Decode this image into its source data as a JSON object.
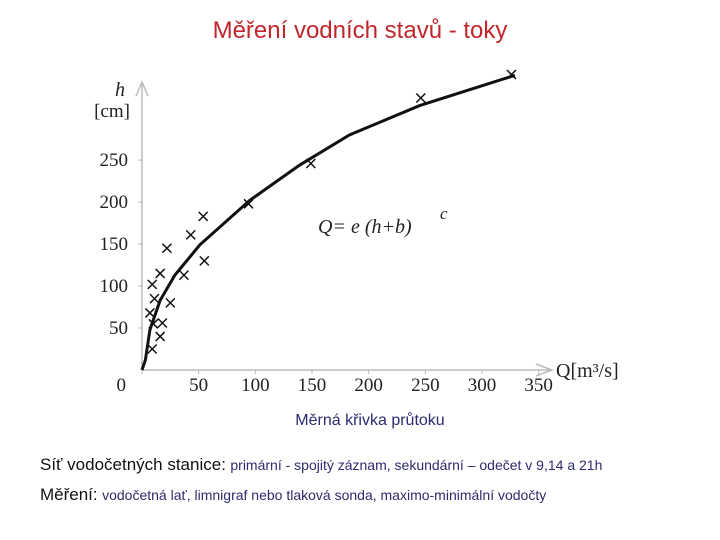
{
  "title": "Měření vodních stavů - toky",
  "chart_data": {
    "type": "scatter",
    "y_label": "h",
    "y_unit": "[cm]",
    "x_label": "Q[m³/s]",
    "formula": {
      "text": "Q=  e  (h+b)",
      "exponent": "c"
    },
    "points": {
      "x": [
        9,
        16,
        10,
        18,
        7,
        11,
        25,
        9,
        16,
        37,
        55,
        22,
        43,
        54,
        94,
        149,
        246,
        326
      ],
      "y": [
        25,
        40,
        55,
        56,
        68,
        85,
        80,
        102,
        115,
        113,
        130,
        145,
        161,
        183,
        198,
        246,
        324,
        352
      ]
    },
    "curve": {
      "x": [
        0,
        3,
        7,
        16,
        29,
        51,
        95,
        139,
        183,
        245,
        329
      ],
      "y": [
        0,
        12,
        48,
        83,
        113,
        149,
        202,
        244,
        280,
        315,
        351
      ]
    },
    "color": "#111111",
    "xlim": [
      0,
      360
    ],
    "ylim": [
      0,
      355
    ],
    "xticks": [
      0,
      50,
      100,
      150,
      200,
      250,
      300,
      350
    ],
    "yticks": [
      50,
      100,
      150,
      200,
      250
    ]
  },
  "caption": "Měrná křivka průtoku",
  "notes": [
    {
      "head": "Síť vodočetných stanice:",
      "body": "primární - spojitý záznam, sekundární – odečet v 9,14 a 21h"
    },
    {
      "head": "Měření:",
      "body": "vodočetná lať, limnigraf nebo tlaková sonda, maximo-minimální vodočty"
    }
  ]
}
